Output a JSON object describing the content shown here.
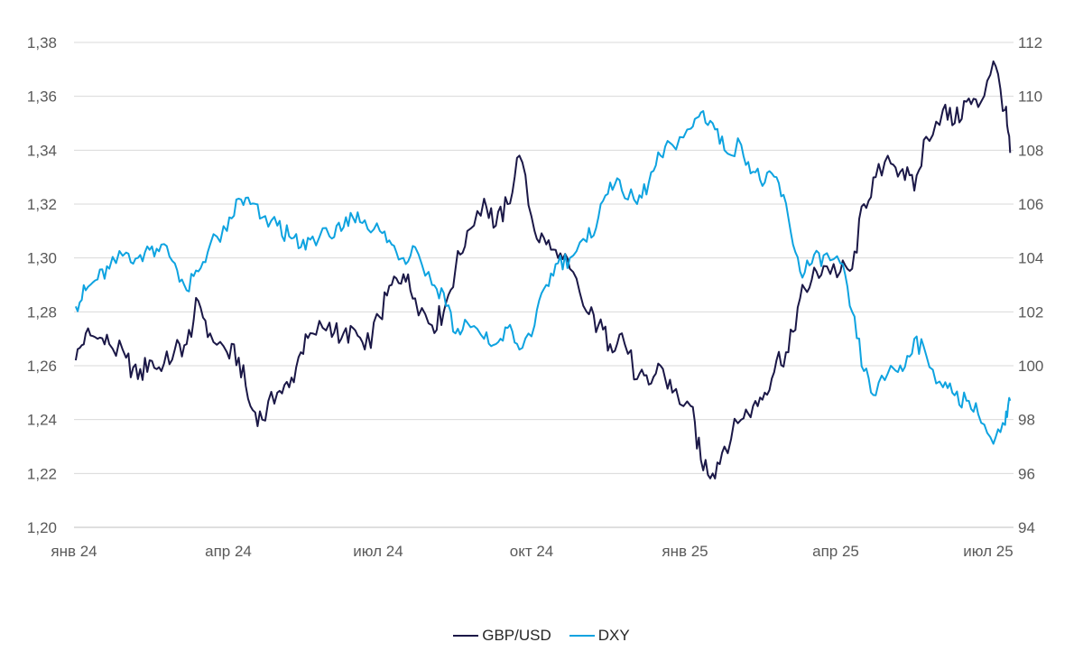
{
  "chart_data": {
    "type": "line",
    "title": "",
    "xlabel": "",
    "ylabel": "",
    "x_ticks": [
      "янв 24",
      "апр 24",
      "июл 24",
      "окт 24",
      "янв 25",
      "апр 25",
      "июл 25"
    ],
    "x_range": [
      "2024-01",
      "2025-07"
    ],
    "y_left": {
      "range": [
        1.2,
        1.38
      ],
      "ticks": [
        "1,20",
        "1,22",
        "1,24",
        "1,26",
        "1,28",
        "1,30",
        "1,32",
        "1,34",
        "1,36",
        "1,38"
      ]
    },
    "y_right": {
      "range": [
        94,
        112
      ],
      "ticks": [
        "94",
        "96",
        "98",
        "100",
        "102",
        "104",
        "106",
        "108",
        "110",
        "112"
      ]
    },
    "grid": true,
    "legend_position": "bottom",
    "series": [
      {
        "name": "GBP/USD",
        "axis": "left",
        "color": "#1b1847",
        "x": [
          "2024-01-02",
          "2024-01-08",
          "2024-01-15",
          "2024-01-22",
          "2024-02-01",
          "2024-02-08",
          "2024-02-15",
          "2024-02-22",
          "2024-03-01",
          "2024-03-08",
          "2024-03-15",
          "2024-03-22",
          "2024-04-01",
          "2024-04-08",
          "2024-04-15",
          "2024-04-22",
          "2024-05-01",
          "2024-05-08",
          "2024-05-15",
          "2024-05-22",
          "2024-06-01",
          "2024-06-08",
          "2024-06-15",
          "2024-06-22",
          "2024-07-01",
          "2024-07-08",
          "2024-07-15",
          "2024-07-22",
          "2024-08-01",
          "2024-08-08",
          "2024-08-15",
          "2024-08-22",
          "2024-09-01",
          "2024-09-08",
          "2024-09-15",
          "2024-09-22",
          "2024-10-01",
          "2024-10-08",
          "2024-10-15",
          "2024-10-22",
          "2024-11-01",
          "2024-11-08",
          "2024-11-15",
          "2024-11-22",
          "2024-12-01",
          "2024-12-08",
          "2024-12-15",
          "2024-12-22",
          "2025-01-02",
          "2025-01-08",
          "2025-01-15",
          "2025-01-22",
          "2025-02-01",
          "2025-02-08",
          "2025-02-15",
          "2025-02-22",
          "2025-03-01",
          "2025-03-08",
          "2025-03-15",
          "2025-03-22",
          "2025-04-01",
          "2025-04-08",
          "2025-04-15",
          "2025-04-22",
          "2025-05-01",
          "2025-05-08",
          "2025-05-15",
          "2025-05-22",
          "2025-06-01",
          "2025-06-08",
          "2025-06-15",
          "2025-06-22",
          "2025-07-01",
          "2025-07-08",
          "2025-07-11"
        ],
        "values": [
          1.262,
          1.272,
          1.27,
          1.268,
          1.263,
          1.255,
          1.262,
          1.258,
          1.266,
          1.268,
          1.284,
          1.272,
          1.265,
          1.263,
          1.245,
          1.24,
          1.25,
          1.252,
          1.265,
          1.272,
          1.276,
          1.27,
          1.274,
          1.266,
          1.278,
          1.29,
          1.294,
          1.285,
          1.275,
          1.28,
          1.296,
          1.31,
          1.322,
          1.312,
          1.32,
          1.338,
          1.31,
          1.305,
          1.3,
          1.296,
          1.28,
          1.275,
          1.268,
          1.272,
          1.255,
          1.253,
          1.26,
          1.25,
          1.245,
          1.225,
          1.22,
          1.23,
          1.24,
          1.245,
          1.25,
          1.262,
          1.265,
          1.285,
          1.292,
          1.297,
          1.295,
          1.296,
          1.32,
          1.33,
          1.335,
          1.333,
          1.325,
          1.345,
          1.355,
          1.35,
          1.358,
          1.356,
          1.373,
          1.355,
          1.339
        ]
      },
      {
        "name": "DXY",
        "axis": "right",
        "color": "#0ea3e0",
        "x": [
          "2024-01-02",
          "2024-01-08",
          "2024-01-15",
          "2024-01-22",
          "2024-02-01",
          "2024-02-08",
          "2024-02-15",
          "2024-02-22",
          "2024-03-01",
          "2024-03-08",
          "2024-03-15",
          "2024-03-22",
          "2024-04-01",
          "2024-04-08",
          "2024-04-15",
          "2024-04-22",
          "2024-05-01",
          "2024-05-08",
          "2024-05-15",
          "2024-05-22",
          "2024-06-01",
          "2024-06-08",
          "2024-06-15",
          "2024-06-22",
          "2024-07-01",
          "2024-07-08",
          "2024-07-15",
          "2024-07-22",
          "2024-08-01",
          "2024-08-08",
          "2024-08-15",
          "2024-08-22",
          "2024-09-01",
          "2024-09-08",
          "2024-09-15",
          "2024-09-22",
          "2024-10-01",
          "2024-10-08",
          "2024-10-15",
          "2024-10-22",
          "2024-11-01",
          "2024-11-08",
          "2024-11-15",
          "2024-11-22",
          "2024-12-01",
          "2024-12-08",
          "2024-12-15",
          "2024-12-22",
          "2025-01-02",
          "2025-01-08",
          "2025-01-15",
          "2025-01-22",
          "2025-02-01",
          "2025-02-08",
          "2025-02-15",
          "2025-02-22",
          "2025-03-01",
          "2025-03-08",
          "2025-03-15",
          "2025-03-22",
          "2025-04-01",
          "2025-04-08",
          "2025-04-15",
          "2025-04-22",
          "2025-05-01",
          "2025-05-08",
          "2025-05-15",
          "2025-05-22",
          "2025-06-01",
          "2025-06-08",
          "2025-06-15",
          "2025-06-22",
          "2025-07-01",
          "2025-07-08",
          "2025-07-11"
        ],
        "values": [
          102.2,
          102.8,
          103.2,
          103.6,
          104.2,
          104.0,
          104.3,
          104.5,
          103.8,
          102.8,
          103.5,
          104.5,
          105.0,
          106.2,
          106.0,
          105.5,
          105.2,
          104.8,
          104.4,
          104.8,
          104.8,
          105.0,
          105.5,
          105.4,
          105.0,
          104.5,
          104.0,
          104.4,
          103.0,
          102.7,
          101.2,
          101.6,
          101.0,
          100.8,
          101.4,
          100.6,
          101.5,
          103.0,
          103.8,
          104.0,
          104.6,
          105.5,
          106.8,
          106.5,
          106.0,
          106.8,
          107.8,
          108.2,
          108.8,
          109.4,
          109.0,
          108.0,
          108.2,
          107.2,
          106.8,
          107.0,
          105.5,
          103.5,
          103.8,
          104.1,
          103.8,
          102.0,
          99.8,
          98.9,
          100.0,
          99.8,
          101.0,
          100.4,
          99.2,
          98.9,
          98.7,
          98.2,
          97.1,
          97.8,
          98.7
        ]
      }
    ]
  }
}
